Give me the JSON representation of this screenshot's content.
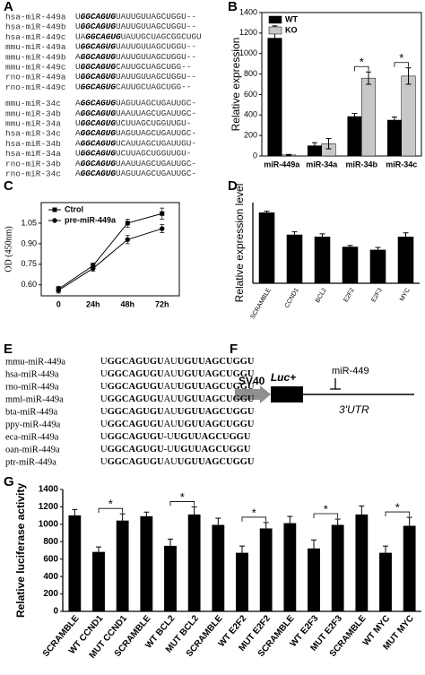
{
  "alignment_a": {
    "panel_label": "A",
    "groups": [
      [
        {
          "name": "hsa-miR-449a",
          "pre": "U",
          "seed": "GGCAGUG",
          "post": "UAUUGUUAGCUGGU--"
        },
        {
          "name": "hsa-miR-449b",
          "pre": "U",
          "seed": "GGCAGUG",
          "post": "UAUUGUUAGCUGGU--"
        },
        {
          "name": "hsa-miR-449c",
          "pre": "UA",
          "seed": "GGCAGUG",
          "post": "UAUUGCUAGCGGCUGU"
        },
        {
          "name": "mmu-miR-449a",
          "pre": "U",
          "seed": "GGCAGUG",
          "post": "UAUUGUUAGCUGGU--"
        },
        {
          "name": "mmu-miR-449b",
          "pre": "A",
          "seed": "GGCAGUG",
          "post": "UAUUGUUAGCUGGU--"
        },
        {
          "name": "mmu-miR-449c",
          "pre": "U",
          "seed": "GGCAGUG",
          "post": "CAUUGCUAGCUGG--"
        },
        {
          "name": "rno-miR-449a",
          "pre": "U",
          "seed": "GGCAGUG",
          "post": "UAUUGUUAGCUGGU--"
        },
        {
          "name": "rno-miR-449c",
          "pre": "U",
          "seed": "GGCAGUG",
          "post": "CAUUGCUAGCUGG--"
        }
      ],
      [
        {
          "name": "mmu-miR-34c",
          "pre": "A",
          "seed": "GGCAGUG",
          "post": "UAGUUAGCUGAUUGC-"
        },
        {
          "name": "mmu-miR-34b",
          "pre": "A",
          "seed": "GGCAGUG",
          "post": "UAAUUAGCUGAUUGC-"
        },
        {
          "name": "mmu-miR-34a",
          "pre": "U",
          "seed": "GGCAGUG",
          "post": "UCUUAGCUGGUUGU-"
        },
        {
          "name": "hsa-miR-34c",
          "pre": "A",
          "seed": "GGCAGUG",
          "post": "UAGUUAGCUGAUUGC-"
        },
        {
          "name": "hsa-miR-34b",
          "pre": "A",
          "seed": "GGCAGUG",
          "post": "UCAUUAGCUGAUUGU-"
        },
        {
          "name": "hsa-miR-34a",
          "pre": "U",
          "seed": "GGCAGUG",
          "post": "UCUUAGCUGGUUGU-"
        },
        {
          "name": "rno-miR-34b",
          "pre": "A",
          "seed": "GGCAGUG",
          "post": "UAAUUAGCUGAUUGC-"
        },
        {
          "name": "rno-miR-34c",
          "pre": "A",
          "seed": "GGCAGUG",
          "post": "UAGUUAGCUGAUUGC-"
        }
      ]
    ]
  },
  "chart_data": [
    {
      "type": "bar",
      "panel_label": "B",
      "y_label": "Relative expression",
      "categories": [
        "miR-449a",
        "miR-34a",
        "miR-34b",
        "miR-34c"
      ],
      "series": [
        {
          "name": "WT",
          "color": "#000000",
          "values": [
            1150,
            100,
            385,
            350
          ],
          "errors": [
            120,
            30,
            30,
            30
          ]
        },
        {
          "name": "KO",
          "color": "#c8c8c8",
          "values": [
            10,
            120,
            760,
            780
          ],
          "errors": [
            5,
            50,
            60,
            80
          ]
        }
      ],
      "significance": [
        null,
        null,
        "*",
        "*"
      ],
      "ylim": [
        0,
        1400
      ],
      "yticks": [
        0,
        200,
        400,
        600,
        800,
        1000,
        1200,
        1400
      ],
      "legend": "upper left"
    },
    {
      "type": "line",
      "panel_label": "C",
      "y_label": "OD (450nm)",
      "categories": [
        "0",
        "24h",
        "48h",
        "72h"
      ],
      "series": [
        {
          "name": "Ctrol",
          "color": "#000000",
          "marker": "square",
          "values": [
            0.57,
            0.74,
            1.05,
            1.12
          ],
          "errors": [
            0.02,
            0.02,
            0.03,
            0.04
          ]
        },
        {
          "name": "pre-miR-449a",
          "color": "#000000",
          "marker": "circle",
          "values": [
            0.56,
            0.72,
            0.93,
            1.01
          ],
          "errors": [
            0.02,
            0.02,
            0.03,
            0.03
          ]
        }
      ],
      "ylim": [
        0.52,
        1.2
      ],
      "yticks": [
        {
          "value": 0.6,
          "label": "0.60"
        },
        {
          "value": 0.75,
          "label": "0.75"
        },
        {
          "value": 0.9,
          "label": "0.90"
        },
        {
          "value": 1.05,
          "label": "1.05"
        }
      ],
      "legend": "upper left"
    },
    {
      "type": "bar",
      "panel_label": "D",
      "y_label": "Relative expression level",
      "categories": [
        "SCRAMBLE",
        "CCND1",
        "BCL2",
        "E2F2",
        "E2F3",
        "MYC"
      ],
      "values": [
        700,
        480,
        460,
        360,
        330,
        460
      ],
      "errors": [
        15,
        30,
        30,
        15,
        25,
        40
      ],
      "color": "#000000",
      "ylim": [
        0,
        800
      ]
    },
    {
      "type": "bar",
      "panel_label": "G",
      "y_label": "Relative luciferase activity",
      "categories": [
        "SCRAMBLE",
        "WT CCND1",
        "MUT CCND1",
        "SCRAMBLE",
        "WT BCL2",
        "MUT BCL2",
        "SCRAMBLE",
        "WT E2F2",
        "MUT E2F2",
        "SCRAMBLE",
        "WT E2F3",
        "MUT E2F3",
        "SCRAMBLE",
        "WT MYC",
        "MUT MYC"
      ],
      "values": [
        1100,
        680,
        1040,
        1090,
        750,
        1110,
        990,
        670,
        950,
        1010,
        720,
        990,
        1110,
        670,
        980
      ],
      "errors": [
        70,
        60,
        80,
        50,
        80,
        90,
        80,
        80,
        70,
        80,
        100,
        70,
        100,
        80,
        100
      ],
      "color": "#000000",
      "significance": [
        null,
        null,
        "*",
        null,
        null,
        "*",
        null,
        null,
        "*",
        null,
        null,
        "*",
        null,
        null,
        "*"
      ],
      "ylim": [
        0,
        1400
      ],
      "yticks": [
        0,
        200,
        400,
        600,
        800,
        1000,
        1200,
        1400
      ]
    }
  ],
  "alignment_e": {
    "panel_label": "E",
    "rows": [
      {
        "name": "mmu-miR-449a",
        "pre": "U",
        "b1": "GGCAGUGU",
        "mid": "AU",
        "b2": "UGUUAGCUGGU"
      },
      {
        "name": "hsa-miR-449a",
        "pre": "U",
        "b1": "GGCAGUGU",
        "mid": "AU",
        "b2": "UGUUAGCUGGU"
      },
      {
        "name": "rno-miR-449a",
        "pre": "U",
        "b1": "GGCAGUGU",
        "mid": "AU",
        "b2": "UGUUAGCUGGU"
      },
      {
        "name": "mml-miR-449a",
        "pre": "U",
        "b1": "GGCAGUGU",
        "mid": "AU",
        "b2": "UGUUAGCUGGU"
      },
      {
        "name": "bta-miR-449a",
        "pre": "U",
        "b1": "GGCAGUGU",
        "mid": "AU",
        "b2": "UGUUAGCUGGU"
      },
      {
        "name": "ppy-miR-449a",
        "pre": "U",
        "b1": "GGCAGUGU",
        "mid": "AU",
        "b2": "UGUUAGCUGGU"
      },
      {
        "name": "eca-miR-449a",
        "pre": "U",
        "b1": "GGCAGUGU",
        "mid": "-U",
        "b2": "UGUUAGCUGGU"
      },
      {
        "name": "oan-miR-449a",
        "pre": "U",
        "b1": "GGCAGUGU",
        "mid": "-U",
        "b2": "UGUUAGCUGGU"
      },
      {
        "name": "ptr-miR-449a",
        "pre": "U",
        "b1": "GGCAGUGU",
        "mid": "AU",
        "b2": "UGUUAGCUGGU"
      }
    ]
  },
  "diagram_f": {
    "panel_label": "F",
    "promoter": "SV40",
    "gene": "Luc+",
    "mirna": "miR-449",
    "utr": "3'UTR"
  }
}
